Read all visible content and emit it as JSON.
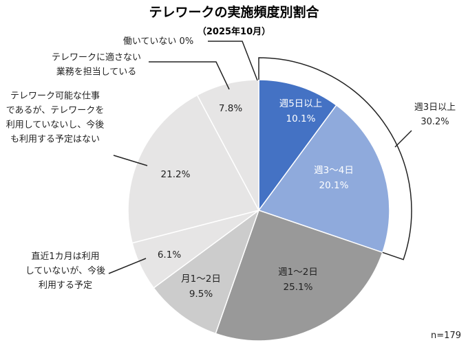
{
  "chart_data": {
    "type": "pie",
    "title": "テレワークの実施頻度別割合",
    "subtitle": "（2025年10月）",
    "note": "n=179",
    "slices": [
      {
        "label": "週5日以上",
        "value": 10.1,
        "value_label": "10.1%",
        "color": "#4472C4",
        "text_color": "#ffffff"
      },
      {
        "label": "週3～4日",
        "value": 20.1,
        "value_label": "20.1%",
        "color": "#8FAADC",
        "text_color": "#ffffff"
      },
      {
        "label": "週1～2日",
        "value": 25.1,
        "value_label": "25.1%",
        "color": "#999999",
        "text_color": "#222222"
      },
      {
        "label": "月1～2日",
        "value": 9.5,
        "value_label": "9.5%",
        "color": "#CCCCCC",
        "text_color": "#222222"
      },
      {
        "label_lines": [
          "直近1カ月は利用",
          "していないが、今後",
          "利用する予定"
        ],
        "value": 6.1,
        "value_label": "6.1%",
        "color": "#E6E5E5",
        "text_color": "#222222"
      },
      {
        "label_lines": [
          "テレワーク可能な仕事",
          "であるが、テレワークを",
          "利用していないし、今後",
          "も利用する予定はない"
        ],
        "value": 21.2,
        "value_label": "21.2%",
        "color": "#E6E5E5",
        "text_color": "#222222"
      },
      {
        "label_lines": [
          "テレワークに適さない",
          "業務を担当している"
        ],
        "value": 7.8,
        "value_label": "7.8%",
        "color": "#E6E5E5",
        "text_color": "#222222"
      },
      {
        "label": "働いていない",
        "value": 0,
        "value_label": "0%",
        "color": "#E6E5E5",
        "text_color": "#222222"
      }
    ],
    "group_annotation": {
      "label": "週3日以上",
      "value": 30.2,
      "value_label": "30.2%"
    }
  }
}
